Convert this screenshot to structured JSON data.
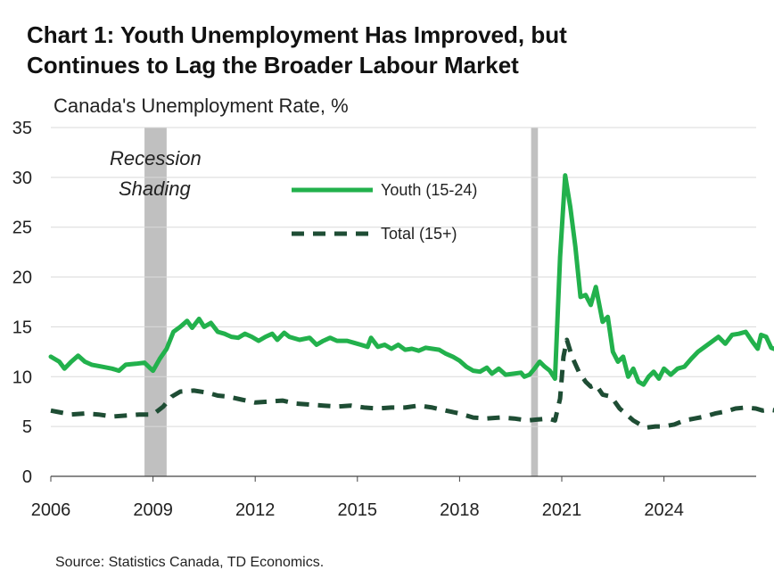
{
  "title_lines": [
    "Chart 1: Youth Unemployment Has Improved, but",
    "Continues to Lag the Broader Labour Market"
  ],
  "source": "Source: Statistics Canada, TD Economics.",
  "chart_data": {
    "type": "line",
    "title": "Chart 1: Youth Unemployment Has Improved, but Continues to Lag the Broader Labour Market",
    "ylabel": "Canada's Unemployment Rate, %",
    "xlabel": "",
    "ylim": [
      0,
      35
    ],
    "xlim": [
      2006.0,
      2027.0
    ],
    "y_ticks": [
      0,
      5,
      10,
      15,
      20,
      25,
      30,
      35
    ],
    "x_ticks": [
      2006,
      2009,
      2012,
      2015,
      2018,
      2021,
      2024
    ],
    "y_tick_labels": [
      "0",
      "5",
      "10",
      "15",
      "20",
      "25",
      "30",
      "35"
    ],
    "x_tick_labels": [
      "2006",
      "2009",
      "2012",
      "2015",
      "2018",
      "2021",
      "2024"
    ],
    "grid": "horizontal",
    "legend_position": "top-center",
    "annotation_lines": [
      "Recession",
      "Shading"
    ],
    "recessions": [
      {
        "start": 2008.75,
        "end": 2009.4
      },
      {
        "start": 2020.1,
        "end": 2020.3
      }
    ],
    "series": [
      {
        "name": "Youth (15-24)",
        "style": "solid",
        "color": "#22b14c",
        "points": [
          [
            2006.0,
            12.0
          ],
          [
            2006.25,
            11.5
          ],
          [
            2006.4,
            10.8
          ],
          [
            2006.6,
            11.5
          ],
          [
            2006.8,
            12.1
          ],
          [
            2007.0,
            11.5
          ],
          [
            2007.2,
            11.2
          ],
          [
            2007.5,
            11.0
          ],
          [
            2007.8,
            10.8
          ],
          [
            2008.0,
            10.6
          ],
          [
            2008.2,
            11.2
          ],
          [
            2008.5,
            11.3
          ],
          [
            2008.75,
            11.4
          ],
          [
            2008.9,
            10.9
          ],
          [
            2009.0,
            10.6
          ],
          [
            2009.2,
            11.8
          ],
          [
            2009.4,
            12.8
          ],
          [
            2009.6,
            14.5
          ],
          [
            2009.8,
            15.0
          ],
          [
            2010.0,
            15.6
          ],
          [
            2010.15,
            14.9
          ],
          [
            2010.35,
            15.8
          ],
          [
            2010.5,
            15.0
          ],
          [
            2010.7,
            15.4
          ],
          [
            2010.9,
            14.5
          ],
          [
            2011.1,
            14.3
          ],
          [
            2011.3,
            14.0
          ],
          [
            2011.5,
            13.9
          ],
          [
            2011.7,
            14.3
          ],
          [
            2011.9,
            14.0
          ],
          [
            2012.1,
            13.6
          ],
          [
            2012.3,
            14.0
          ],
          [
            2012.5,
            14.3
          ],
          [
            2012.65,
            13.7
          ],
          [
            2012.85,
            14.4
          ],
          [
            2013.0,
            14.0
          ],
          [
            2013.3,
            13.7
          ],
          [
            2013.6,
            13.9
          ],
          [
            2013.8,
            13.2
          ],
          [
            2014.0,
            13.6
          ],
          [
            2014.2,
            13.9
          ],
          [
            2014.4,
            13.6
          ],
          [
            2014.7,
            13.6
          ],
          [
            2014.9,
            13.4
          ],
          [
            2015.1,
            13.2
          ],
          [
            2015.3,
            13.0
          ],
          [
            2015.4,
            13.9
          ],
          [
            2015.6,
            13.0
          ],
          [
            2015.8,
            13.2
          ],
          [
            2016.0,
            12.8
          ],
          [
            2016.2,
            13.2
          ],
          [
            2016.4,
            12.7
          ],
          [
            2016.6,
            12.8
          ],
          [
            2016.8,
            12.6
          ],
          [
            2017.0,
            12.9
          ],
          [
            2017.2,
            12.8
          ],
          [
            2017.4,
            12.7
          ],
          [
            2017.6,
            12.3
          ],
          [
            2017.8,
            12.0
          ],
          [
            2018.0,
            11.6
          ],
          [
            2018.2,
            11.0
          ],
          [
            2018.4,
            10.6
          ],
          [
            2018.6,
            10.5
          ],
          [
            2018.8,
            10.9
          ],
          [
            2018.95,
            10.3
          ],
          [
            2019.15,
            10.8
          ],
          [
            2019.35,
            10.2
          ],
          [
            2019.6,
            10.3
          ],
          [
            2019.8,
            10.4
          ],
          [
            2019.9,
            10.0
          ],
          [
            2020.05,
            10.2
          ],
          [
            2020.2,
            10.8
          ],
          [
            2020.35,
            11.5
          ],
          [
            2020.5,
            11.0
          ],
          [
            2020.65,
            10.6
          ],
          [
            2020.8,
            9.8
          ],
          [
            2020.95,
            22.0
          ],
          [
            2021.1,
            30.2
          ],
          [
            2021.25,
            27.0
          ],
          [
            2021.4,
            23.0
          ],
          [
            2021.55,
            18.0
          ],
          [
            2021.7,
            18.2
          ],
          [
            2021.85,
            17.2
          ],
          [
            2022.0,
            19.0
          ],
          [
            2022.2,
            15.5
          ],
          [
            2022.35,
            16.0
          ],
          [
            2022.5,
            12.5
          ],
          [
            2022.65,
            11.5
          ],
          [
            2022.8,
            12.0
          ],
          [
            2022.95,
            10.0
          ],
          [
            2023.1,
            10.8
          ],
          [
            2023.25,
            9.5
          ],
          [
            2023.4,
            9.2
          ],
          [
            2023.55,
            10.0
          ],
          [
            2023.7,
            10.5
          ],
          [
            2023.85,
            9.8
          ],
          [
            2024.0,
            10.8
          ],
          [
            2024.2,
            10.2
          ],
          [
            2024.4,
            10.8
          ],
          [
            2024.6,
            11.0
          ],
          [
            2024.8,
            11.8
          ],
          [
            2025.0,
            12.5
          ],
          [
            2025.2,
            13.0
          ],
          [
            2025.4,
            13.5
          ],
          [
            2025.6,
            14.0
          ],
          [
            2025.8,
            13.3
          ],
          [
            2026.0,
            14.2
          ],
          [
            2026.2,
            14.3
          ],
          [
            2026.4,
            14.5
          ],
          [
            2026.6,
            13.5
          ],
          [
            2026.75,
            12.8
          ],
          [
            2026.85,
            14.2
          ],
          [
            2027.0,
            14.0
          ],
          [
            2027.15,
            12.9
          ],
          [
            2027.3,
            12.7
          ]
        ]
      },
      {
        "name": "Total (15+)",
        "style": "dashed",
        "color": "#1e4d34",
        "points": [
          [
            2006.0,
            6.6
          ],
          [
            2006.3,
            6.4
          ],
          [
            2006.6,
            6.2
          ],
          [
            2007.0,
            6.3
          ],
          [
            2007.4,
            6.2
          ],
          [
            2007.8,
            6.0
          ],
          [
            2008.2,
            6.1
          ],
          [
            2008.6,
            6.2
          ],
          [
            2008.9,
            6.2
          ],
          [
            2009.0,
            6.2
          ],
          [
            2009.3,
            7.0
          ],
          [
            2009.55,
            8.0
          ],
          [
            2009.8,
            8.5
          ],
          [
            2010.2,
            8.6
          ],
          [
            2010.6,
            8.4
          ],
          [
            2010.9,
            8.1
          ],
          [
            2011.2,
            8.0
          ],
          [
            2011.6,
            7.7
          ],
          [
            2012.0,
            7.4
          ],
          [
            2012.4,
            7.5
          ],
          [
            2012.8,
            7.6
          ],
          [
            2013.2,
            7.3
          ],
          [
            2013.6,
            7.2
          ],
          [
            2014.0,
            7.1
          ],
          [
            2014.4,
            7.0
          ],
          [
            2014.8,
            7.1
          ],
          [
            2015.2,
            6.9
          ],
          [
            2015.6,
            6.8
          ],
          [
            2016.0,
            6.9
          ],
          [
            2016.4,
            6.9
          ],
          [
            2016.8,
            7.1
          ],
          [
            2017.2,
            6.9
          ],
          [
            2017.6,
            6.6
          ],
          [
            2018.0,
            6.3
          ],
          [
            2018.4,
            5.9
          ],
          [
            2018.8,
            5.8
          ],
          [
            2019.2,
            5.9
          ],
          [
            2019.6,
            5.8
          ],
          [
            2020.0,
            5.6
          ],
          [
            2020.3,
            5.7
          ],
          [
            2020.6,
            5.8
          ],
          [
            2020.8,
            5.6
          ],
          [
            2020.95,
            7.8
          ],
          [
            2021.05,
            12.0
          ],
          [
            2021.15,
            13.7
          ],
          [
            2021.3,
            12.0
          ],
          [
            2021.5,
            10.5
          ],
          [
            2021.7,
            9.5
          ],
          [
            2021.85,
            9.0
          ],
          [
            2022.0,
            9.2
          ],
          [
            2022.2,
            8.2
          ],
          [
            2022.45,
            8.0
          ],
          [
            2022.7,
            6.8
          ],
          [
            2022.9,
            6.2
          ],
          [
            2023.1,
            5.6
          ],
          [
            2023.3,
            5.2
          ],
          [
            2023.5,
            4.9
          ],
          [
            2023.75,
            5.0
          ],
          [
            2024.0,
            5.0
          ],
          [
            2024.3,
            5.2
          ],
          [
            2024.6,
            5.6
          ],
          [
            2024.9,
            5.8
          ],
          [
            2025.2,
            6.0
          ],
          [
            2025.5,
            6.3
          ],
          [
            2025.8,
            6.5
          ],
          [
            2026.1,
            6.8
          ],
          [
            2026.4,
            6.9
          ],
          [
            2026.7,
            6.8
          ],
          [
            2026.9,
            6.6
          ],
          [
            2027.1,
            6.7
          ],
          [
            2027.3,
            6.6
          ]
        ]
      }
    ]
  }
}
